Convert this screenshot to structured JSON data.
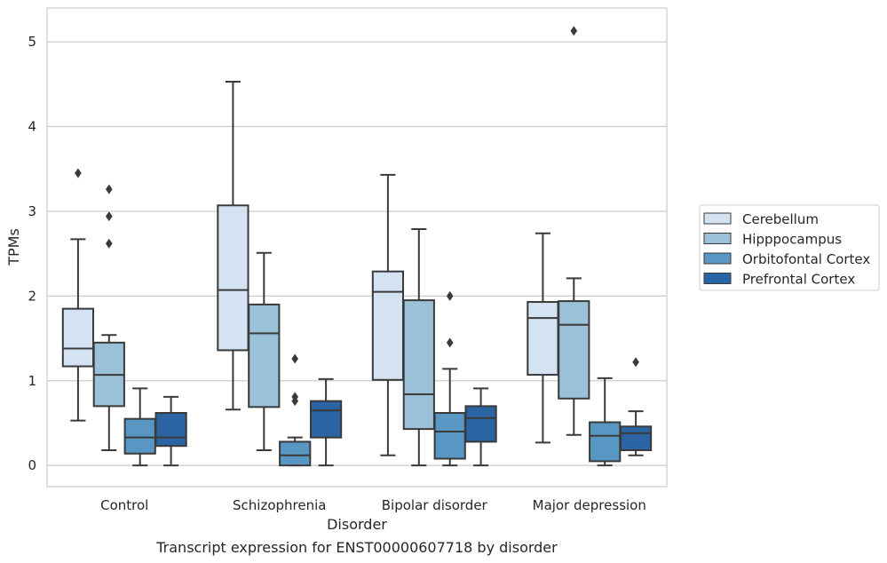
{
  "chart_data": {
    "type": "box",
    "title": "",
    "xlabel": "Disorder",
    "ylabel": "TPMs",
    "caption": "Transcript expression for ENST00000607718 by disorder",
    "ylim": [
      -0.25,
      5.4
    ],
    "yticks": [
      0,
      1,
      2,
      3,
      4,
      5
    ],
    "categories": [
      "Control",
      "Schizophrenia",
      "Bipolar disorder",
      "Major depression"
    ],
    "grid": "horizontal",
    "legend_position": "right",
    "series": [
      {
        "name": "Cerebellum",
        "color": "#d4e3f2",
        "boxes": [
          {
            "whislo": 0.53,
            "q1": 1.17,
            "med": 1.38,
            "q3": 1.85,
            "whishi": 2.67,
            "fliers": [
              3.45
            ]
          },
          {
            "whislo": 0.66,
            "q1": 1.36,
            "med": 2.07,
            "q3": 3.07,
            "whishi": 4.53,
            "fliers": []
          },
          {
            "whislo": 0.12,
            "q1": 1.01,
            "med": 2.05,
            "q3": 2.29,
            "whishi": 3.43,
            "fliers": []
          },
          {
            "whislo": 0.27,
            "q1": 1.07,
            "med": 1.74,
            "q3": 1.93,
            "whishi": 2.74,
            "fliers": []
          }
        ]
      },
      {
        "name": "Hipppocampus",
        "color": "#9ac1d8",
        "boxes": [
          {
            "whislo": 0.18,
            "q1": 0.7,
            "med": 1.07,
            "q3": 1.45,
            "whishi": 1.54,
            "fliers": [
              3.26,
              2.94,
              2.62
            ]
          },
          {
            "whislo": 0.18,
            "q1": 0.69,
            "med": 1.56,
            "q3": 1.9,
            "whishi": 2.51,
            "fliers": []
          },
          {
            "whislo": 0.0,
            "q1": 0.43,
            "med": 0.84,
            "q3": 1.95,
            "whishi": 2.79,
            "fliers": []
          },
          {
            "whislo": 0.36,
            "q1": 0.79,
            "med": 1.66,
            "q3": 1.94,
            "whishi": 2.21,
            "fliers": [
              5.13
            ]
          }
        ]
      },
      {
        "name": "Orbitofontal Cortex",
        "color": "#5896c4",
        "boxes": [
          {
            "whislo": 0.0,
            "q1": 0.14,
            "med": 0.33,
            "q3": 0.55,
            "whishi": 0.91,
            "fliers": []
          },
          {
            "whislo": 0.0,
            "q1": 0.0,
            "med": 0.12,
            "q3": 0.28,
            "whishi": 0.33,
            "fliers": [
              1.26,
              0.81,
              0.76
            ]
          },
          {
            "whislo": 0.0,
            "q1": 0.08,
            "med": 0.4,
            "q3": 0.62,
            "whishi": 1.14,
            "fliers": [
              2.0,
              1.45
            ]
          },
          {
            "whislo": 0.0,
            "q1": 0.05,
            "med": 0.35,
            "q3": 0.51,
            "whishi": 1.03,
            "fliers": []
          }
        ]
      },
      {
        "name": "Prefrontal Cortex",
        "color": "#2a64a3",
        "boxes": [
          {
            "whislo": 0.0,
            "q1": 0.23,
            "med": 0.33,
            "q3": 0.62,
            "whishi": 0.81,
            "fliers": []
          },
          {
            "whislo": 0.0,
            "q1": 0.33,
            "med": 0.65,
            "q3": 0.76,
            "whishi": 1.02,
            "fliers": []
          },
          {
            "whislo": 0.0,
            "q1": 0.28,
            "med": 0.56,
            "q3": 0.7,
            "whishi": 0.91,
            "fliers": []
          },
          {
            "whislo": 0.12,
            "q1": 0.18,
            "med": 0.38,
            "q3": 0.46,
            "whishi": 0.64,
            "fliers": [
              1.22
            ]
          }
        ]
      }
    ]
  }
}
